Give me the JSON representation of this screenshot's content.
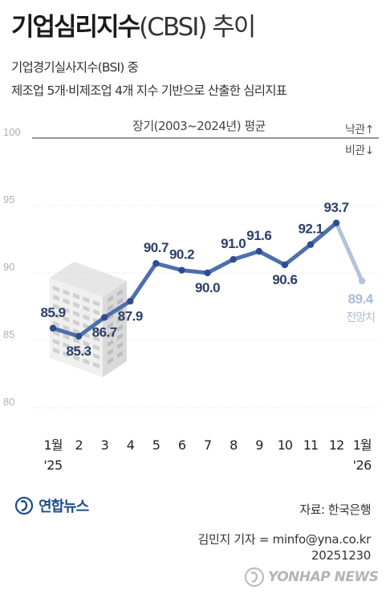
{
  "header": {
    "title_main": "기업심리지수",
    "title_paren": "(CBSI) 추이",
    "subtitle_line1": "기업경기실사지수(BSI) 중",
    "subtitle_line2": "제조업 5개·비제조업 4개 지수 기반으로 산출한 심리지표"
  },
  "chart_data": {
    "type": "line",
    "baseline_label": "장기(2003~2024년) 평균",
    "baseline_value": 100,
    "legend_up": "낙관↑",
    "legend_down": "비관↓",
    "ylim": [
      80,
      100
    ],
    "yticks": [
      100,
      95,
      90,
      85,
      80
    ],
    "x_labels": [
      {
        "top": "1월",
        "bottom": "'25"
      },
      {
        "top": "2",
        "bottom": ""
      },
      {
        "top": "3",
        "bottom": ""
      },
      {
        "top": "4",
        "bottom": ""
      },
      {
        "top": "5",
        "bottom": ""
      },
      {
        "top": "6",
        "bottom": ""
      },
      {
        "top": "7",
        "bottom": ""
      },
      {
        "top": "8",
        "bottom": ""
      },
      {
        "top": "9",
        "bottom": ""
      },
      {
        "top": "10",
        "bottom": ""
      },
      {
        "top": "11",
        "bottom": ""
      },
      {
        "top": "12",
        "bottom": ""
      },
      {
        "top": "1월",
        "bottom": "'26"
      }
    ],
    "values": [
      85.9,
      85.3,
      86.7,
      87.9,
      90.7,
      90.2,
      90.0,
      91.0,
      91.6,
      90.6,
      92.1,
      93.7,
      89.4
    ],
    "value_labels": [
      "85.9",
      "85.3",
      "86.7",
      "87.9",
      "90.7",
      "90.2",
      "90.0",
      "91.0",
      "91.6",
      "90.6",
      "92.1",
      "93.7",
      "89.4"
    ],
    "forecast_note": "전망치",
    "colors": {
      "actual": "#4d6fae",
      "actual_marker": "#2d4d8f",
      "forecast": "#b3c3dd",
      "axis_text": "#b0b0b0",
      "grid": "#dddddd"
    }
  },
  "footer": {
    "source": "자료: 한국은행",
    "reporter": "김민지 기자 = minfo@yna.co.kr",
    "date": "20251230",
    "logo_text": "연합뉴스",
    "watermark_text": "YONHAP NEWS"
  }
}
